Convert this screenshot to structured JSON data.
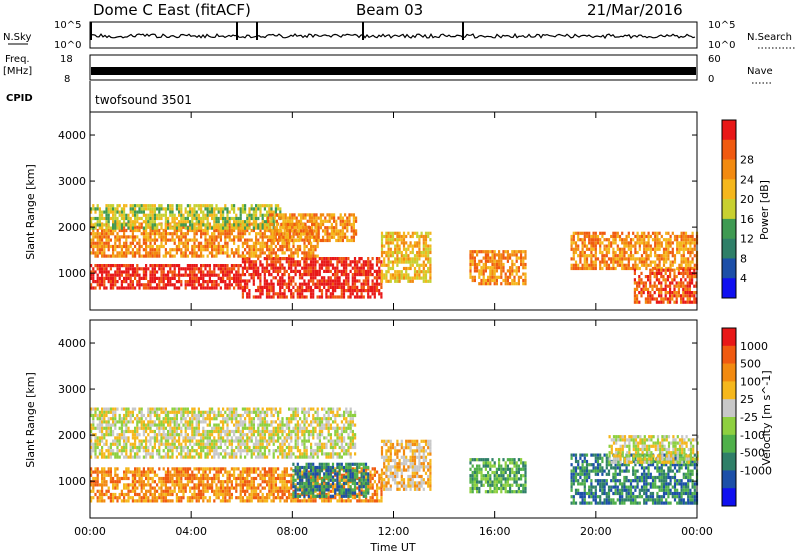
{
  "header": {
    "station": "Dome C East (fitACF)",
    "beam": "Beam 03",
    "date": "21/Mar/2016"
  },
  "top_panels": {
    "nsky_label": "N.Sky",
    "nsky_ticks": [
      "10^5",
      "10^0"
    ],
    "nsearch_label": "N.Search",
    "nsearch_ticks": [
      "10^5",
      "10^0"
    ],
    "freq_label_1": "Freq.",
    "freq_label_2": "[MHz]",
    "freq_ticks": [
      "18",
      "8"
    ],
    "nave_label": "Nave",
    "nave_ticks": [
      "60",
      "0"
    ],
    "cpid_label": "CPID",
    "cpid_value": "twofsound 3501"
  },
  "colors": {
    "power": [
      "#1010f0",
      "#1c4fa8",
      "#2f7f68",
      "#3f9a52",
      "#c8d030",
      "#f5b71c",
      "#f28a10",
      "#f05a10",
      "#e81818"
    ],
    "velocity": [
      "#1010f0",
      "#1c4fa8",
      "#2f7f68",
      "#4fb04a",
      "#8ed040",
      "#c8c8c8",
      "#f5b71c",
      "#f28a10",
      "#f05a10",
      "#e81818"
    ]
  },
  "chart_data": [
    {
      "type": "heatmap",
      "name": "power",
      "xlabel": "",
      "ylabel": "Slant Range [km]",
      "ylim": [
        200,
        4500
      ],
      "xlim": [
        0,
        24
      ],
      "y_ticks": [
        "1000",
        "2000",
        "3000",
        "4000"
      ],
      "colorbar_label": "Power [dB]",
      "colorbar_ticks": [
        "4",
        "8",
        "12",
        "16",
        "20",
        "24",
        "28"
      ],
      "structures": [
        {
          "x0": 0.0,
          "x1": 6.0,
          "y0": 650,
          "y1": 1200,
          "level": 8
        },
        {
          "x0": 6.0,
          "x1": 11.5,
          "y0": 450,
          "y1": 1350,
          "level": 8
        },
        {
          "x0": 0.0,
          "x1": 9.0,
          "y0": 1400,
          "y1": 2100,
          "level": 6
        },
        {
          "x0": 0.0,
          "x1": 7.5,
          "y0": 2000,
          "y1": 2500,
          "level": 4
        },
        {
          "x0": 7.0,
          "x1": 10.5,
          "y0": 1700,
          "y1": 2300,
          "level": 6
        },
        {
          "x0": 11.5,
          "x1": 13.5,
          "y0": 800,
          "y1": 1900,
          "level": 5
        },
        {
          "x0": 15.0,
          "x1": 17.2,
          "y0": 800,
          "y1": 1500,
          "level": 6
        },
        {
          "x0": 19.0,
          "x1": 24.0,
          "y0": 1100,
          "y1": 1900,
          "level": 6
        },
        {
          "x0": 21.5,
          "x1": 24.0,
          "y0": 400,
          "y1": 1100,
          "level": 7
        }
      ]
    },
    {
      "type": "heatmap",
      "name": "velocity",
      "xlabel": "Time UT",
      "ylabel": "Slant Range [km]",
      "ylim": [
        200,
        4500
      ],
      "xlim": [
        0,
        24
      ],
      "x_ticks": [
        "00:00",
        "04:00",
        "08:00",
        "12:00",
        "16:00",
        "20:00",
        "00:00"
      ],
      "y_ticks": [
        "1000",
        "2000",
        "3000",
        "4000"
      ],
      "colorbar_label": "Velocity [m s^-1]",
      "colorbar_ticks": [
        "1000",
        "500",
        "100",
        "25",
        "-25",
        "-100",
        "-500",
        "-1000"
      ],
      "structures": [
        {
          "x0": 0.0,
          "x1": 11.5,
          "y0": 600,
          "y1": 1300,
          "level": 7
        },
        {
          "x0": 0.0,
          "x1": 10.5,
          "y0": 1500,
          "y1": 2600,
          "level": 5
        },
        {
          "x0": 8.0,
          "x1": 11.0,
          "y0": 700,
          "y1": 1400,
          "level": 2
        },
        {
          "x0": 11.5,
          "x1": 13.5,
          "y0": 800,
          "y1": 1900,
          "level": 6
        },
        {
          "x0": 15.0,
          "x1": 17.2,
          "y0": 800,
          "y1": 1500,
          "level": 3
        },
        {
          "x0": 19.0,
          "x1": 24.0,
          "y0": 500,
          "y1": 1600,
          "level": 2
        },
        {
          "x0": 20.5,
          "x1": 24.0,
          "y0": 1400,
          "y1": 2000,
          "level": 5
        }
      ]
    }
  ]
}
